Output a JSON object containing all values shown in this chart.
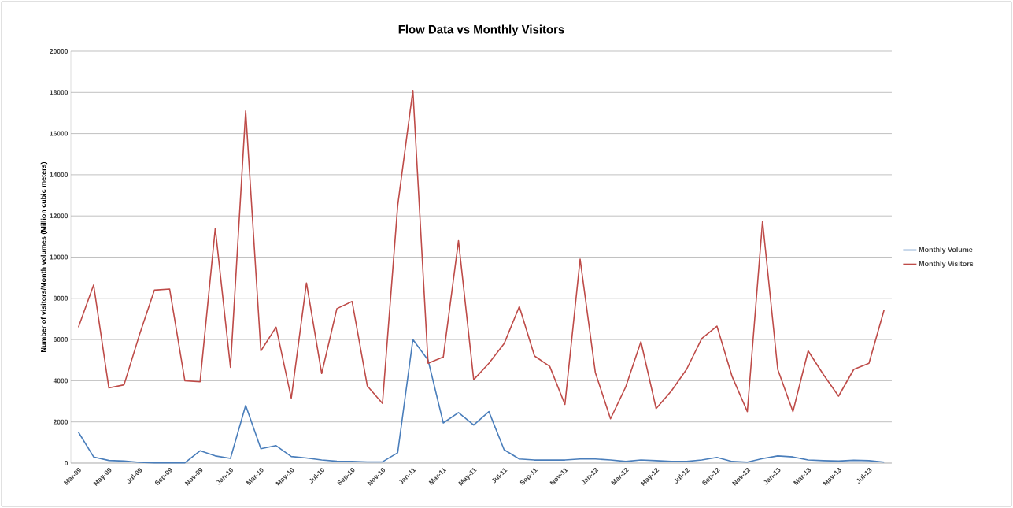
{
  "chart_data": {
    "type": "line",
    "title": "Flow Data vs Monthly Visitors",
    "ylabel": "Number of visitors/Month volumes (Million cubic meters)",
    "categories": [
      "Mar-09",
      null,
      "May-09",
      null,
      "Jul-09",
      null,
      "Sep-09",
      null,
      "Nov-09",
      null,
      "Jan-10",
      null,
      "Mar-10",
      null,
      "May-10",
      null,
      "Jul-10",
      null,
      "Sep-10",
      null,
      "Nov-10",
      null,
      "Jan-11",
      null,
      "Mar-11",
      null,
      "May-11",
      null,
      "Jul-11",
      null,
      "Sep-11",
      null,
      "Nov-11",
      null,
      "Jan-12",
      null,
      "Mar-12",
      null,
      "May-12",
      null,
      "Jul-12",
      null,
      "Sep-12",
      null,
      "Nov-12",
      null,
      "Jan-13",
      null,
      "Mar-13",
      null,
      "May-13",
      null,
      "Jul-13",
      null
    ],
    "series": [
      {
        "name": "Monthly Volume",
        "color": "#4a7ebb",
        "values": [
          1500,
          300,
          130,
          100,
          40,
          10,
          10,
          10,
          600,
          350,
          230,
          2800,
          700,
          850,
          320,
          250,
          150,
          90,
          80,
          60,
          60,
          500,
          6000,
          5000,
          1950,
          2450,
          1850,
          2500,
          650,
          200,
          150,
          150,
          150,
          200,
          200,
          150,
          80,
          150,
          120,
          80,
          80,
          150,
          280,
          80,
          50,
          220,
          350,
          300,
          150,
          120,
          100,
          140,
          120,
          50
        ]
      },
      {
        "name": "Monthly Visitors",
        "color": "#be4b48",
        "values": [
          6600,
          8650,
          3650,
          3800,
          6200,
          8400,
          8450,
          4000,
          3950,
          11400,
          4650,
          17100,
          5450,
          6600,
          3150,
          8750,
          4350,
          7500,
          7850,
          3750,
          2900,
          12500,
          18100,
          4850,
          5150,
          10800,
          4050,
          4850,
          5800,
          7600,
          5200,
          4700,
          2850,
          9900,
          4400,
          2150,
          3700,
          5900,
          2650,
          3500,
          4550,
          6050,
          6650,
          4200,
          2500,
          11750,
          4550,
          2500,
          5450,
          4300,
          3250,
          4550,
          4850,
          7450
        ]
      }
    ],
    "ylim": [
      0,
      20000
    ],
    "yticks": [
      0,
      2000,
      4000,
      6000,
      8000,
      10000,
      12000,
      14000,
      16000,
      18000,
      20000
    ],
    "grid": "y",
    "legend": "right",
    "marker": "none",
    "line_style": "solid"
  }
}
